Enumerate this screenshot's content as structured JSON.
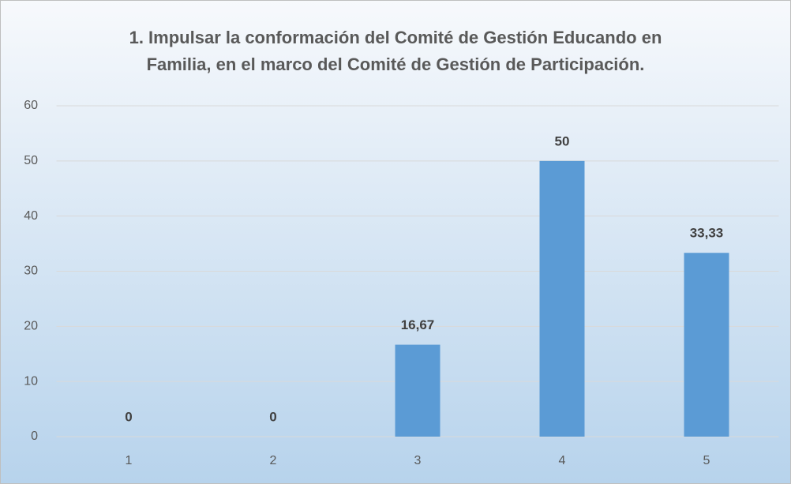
{
  "chart_data": {
    "type": "bar",
    "title": [
      "1. Impulsar la conformación del Comité de Gestión Educando en",
      "Familia, en el marco del Comité de Gestión de Participación."
    ],
    "categories": [
      "1",
      "2",
      "3",
      "4",
      "5"
    ],
    "values": [
      0,
      0,
      16.67,
      50,
      33.33
    ],
    "value_labels": [
      "0",
      "0",
      "16,67",
      "50",
      "33,33"
    ],
    "color": "#5b9bd5",
    "ylim": [
      0,
      60
    ],
    "yticks": [
      0,
      10,
      20,
      30,
      40,
      50,
      60
    ],
    "grid": true
  }
}
